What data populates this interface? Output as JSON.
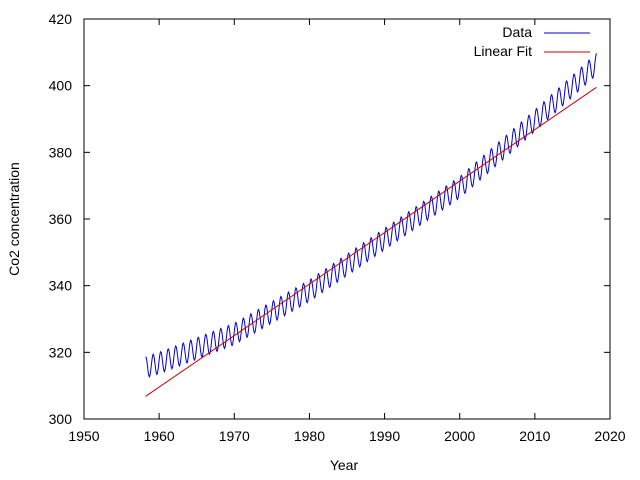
{
  "chart_data": {
    "type": "line",
    "title": "",
    "xlabel": "Year",
    "ylabel": "Co2 concentration",
    "xlim": [
      1950,
      2020
    ],
    "ylim": [
      300,
      420
    ],
    "xticks": [
      1950,
      1960,
      1970,
      1980,
      1990,
      2000,
      2010,
      2020
    ],
    "yticks": [
      300,
      320,
      340,
      360,
      380,
      400,
      420
    ],
    "grid": false,
    "legend_position": "top-right",
    "series": [
      {
        "name": "Data",
        "color": "#0000cc",
        "kind": "seasonal-line",
        "start_year": 1958.2,
        "end_year": 2018.2,
        "trend_knots": [
          [
            1958.2,
            315.5
          ],
          [
            1960,
            316.8
          ],
          [
            1970,
            325.5
          ],
          [
            1980,
            338.5
          ],
          [
            1990,
            354.0
          ],
          [
            2000,
            369.5
          ],
          [
            2010,
            389.5
          ],
          [
            2018.2,
            406.5
          ]
        ],
        "seasonal_amplitude": 3.2
      },
      {
        "name": "Linear Fit",
        "color": "#cc0000",
        "kind": "straight-line",
        "x": [
          1958.2,
          2018.2
        ],
        "y": [
          306.8,
          399.5
        ]
      }
    ]
  }
}
